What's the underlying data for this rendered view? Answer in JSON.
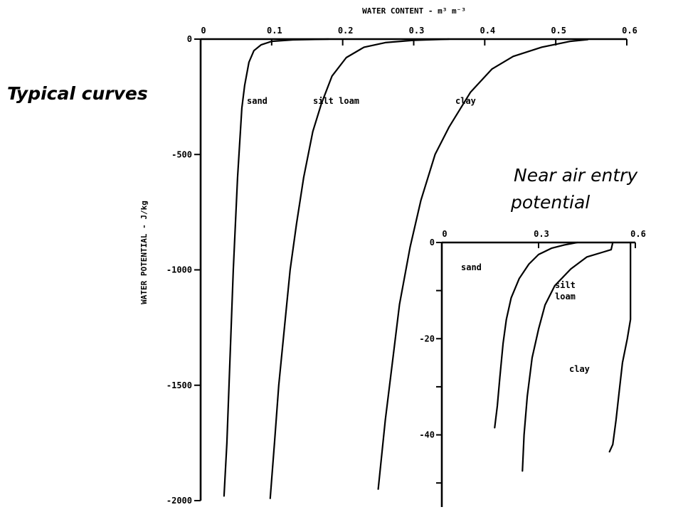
{
  "captions": {
    "typical": "Typical curves",
    "near_line1": "Near air entry",
    "near_line2": "potential"
  },
  "chart_data": [
    {
      "type": "line",
      "title": "Typical curves",
      "xlabel": "WATER CONTENT - m³ m⁻³",
      "ylabel": "WATER POTENTIAL - J/kg",
      "x_axis_position": "top",
      "xlim": [
        0,
        0.6
      ],
      "ylim": [
        -2000,
        0
      ],
      "x_ticks": [
        0,
        0.1,
        0.2,
        0.3,
        0.4,
        0.5,
        0.6
      ],
      "x_tick_labels": [
        "0",
        "0.1",
        "0.2",
        "0.3",
        "0.4",
        "0.5",
        "0.6"
      ],
      "y_ticks": [
        0,
        -500,
        -1000,
        -1500,
        -2000
      ],
      "y_tick_labels": [
        "0",
        "-500",
        "-1000",
        "-1500",
        "-2000"
      ],
      "grid": false,
      "series": [
        {
          "name": "sand",
          "points": [
            [
              0.18,
              0
            ],
            [
              0.13,
              -3
            ],
            [
              0.1,
              -10
            ],
            [
              0.085,
              -25
            ],
            [
              0.075,
              -50
            ],
            [
              0.068,
              -100
            ],
            [
              0.062,
              -200
            ],
            [
              0.058,
              -300
            ],
            [
              0.055,
              -450
            ],
            [
              0.052,
              -600
            ],
            [
              0.049,
              -800
            ],
            [
              0.046,
              -1000
            ],
            [
              0.043,
              -1250
            ],
            [
              0.04,
              -1500
            ],
            [
              0.037,
              -1750
            ],
            [
              0.033,
              -1980
            ]
          ]
        },
        {
          "name": "silt loam",
          "points": [
            [
              0.35,
              0
            ],
            [
              0.3,
              -5
            ],
            [
              0.26,
              -15
            ],
            [
              0.23,
              -35
            ],
            [
              0.205,
              -80
            ],
            [
              0.185,
              -160
            ],
            [
              0.17,
              -280
            ],
            [
              0.158,
              -400
            ],
            [
              0.145,
              -600
            ],
            [
              0.135,
              -800
            ],
            [
              0.126,
              -1000
            ],
            [
              0.118,
              -1250
            ],
            [
              0.11,
              -1500
            ],
            [
              0.104,
              -1750
            ],
            [
              0.098,
              -1990
            ]
          ]
        },
        {
          "name": "clay",
          "points": [
            [
              0.545,
              -2
            ],
            [
              0.52,
              -10
            ],
            [
              0.48,
              -35
            ],
            [
              0.44,
              -75
            ],
            [
              0.41,
              -130
            ],
            [
              0.38,
              -230
            ],
            [
              0.35,
              -380
            ],
            [
              0.33,
              -500
            ],
            [
              0.31,
              -700
            ],
            [
              0.295,
              -900
            ],
            [
              0.28,
              -1150
            ],
            [
              0.27,
              -1400
            ],
            [
              0.26,
              -1650
            ],
            [
              0.25,
              -1950
            ]
          ]
        }
      ]
    },
    {
      "type": "line",
      "title": "Near air entry potential",
      "xlim": [
        0,
        0.6
      ],
      "ylim": [
        -55,
        0
      ],
      "x_axis_position": "top",
      "x_ticks": [
        0,
        0.3,
        0.6
      ],
      "x_tick_labels": [
        "0",
        "0.3",
        "0.6"
      ],
      "y_ticks": [
        0,
        -10,
        -20,
        -30,
        -40,
        -50
      ],
      "y_tick_labels": [
        "0",
        "",
        "-20",
        "",
        "-40",
        ""
      ],
      "grid": false,
      "series": [
        {
          "name": "sand",
          "label_lines": [
            "sand"
          ],
          "points": [
            [
              0.42,
              0
            ],
            [
              0.38,
              -0.5
            ],
            [
              0.34,
              -1.2
            ],
            [
              0.3,
              -2.5
            ],
            [
              0.27,
              -4.5
            ],
            [
              0.24,
              -7.5
            ],
            [
              0.215,
              -11.5
            ],
            [
              0.2,
              -16
            ],
            [
              0.19,
              -21
            ],
            [
              0.18,
              -28
            ],
            [
              0.172,
              -34
            ],
            [
              0.164,
              -38.5
            ]
          ]
        },
        {
          "name": "silt loam",
          "label_lines": [
            "silt",
            "loam"
          ],
          "points": [
            [
              0.53,
              0
            ],
            [
              0.525,
              -1.5
            ],
            [
              0.5,
              -2
            ],
            [
              0.45,
              -3
            ],
            [
              0.4,
              -5.5
            ],
            [
              0.35,
              -9
            ],
            [
              0.32,
              -13
            ],
            [
              0.3,
              -18
            ],
            [
              0.28,
              -24
            ],
            [
              0.265,
              -32
            ],
            [
              0.255,
              -40
            ],
            [
              0.25,
              -47.5
            ]
          ]
        },
        {
          "name": "clay",
          "label_lines": [
            "clay"
          ],
          "points": [
            [
              0.585,
              0
            ],
            [
              0.585,
              -16
            ],
            [
              0.575,
              -20
            ],
            [
              0.56,
              -25
            ],
            [
              0.55,
              -31
            ],
            [
              0.54,
              -37
            ],
            [
              0.53,
              -42
            ],
            [
              0.52,
              -43.5
            ]
          ]
        }
      ]
    }
  ]
}
